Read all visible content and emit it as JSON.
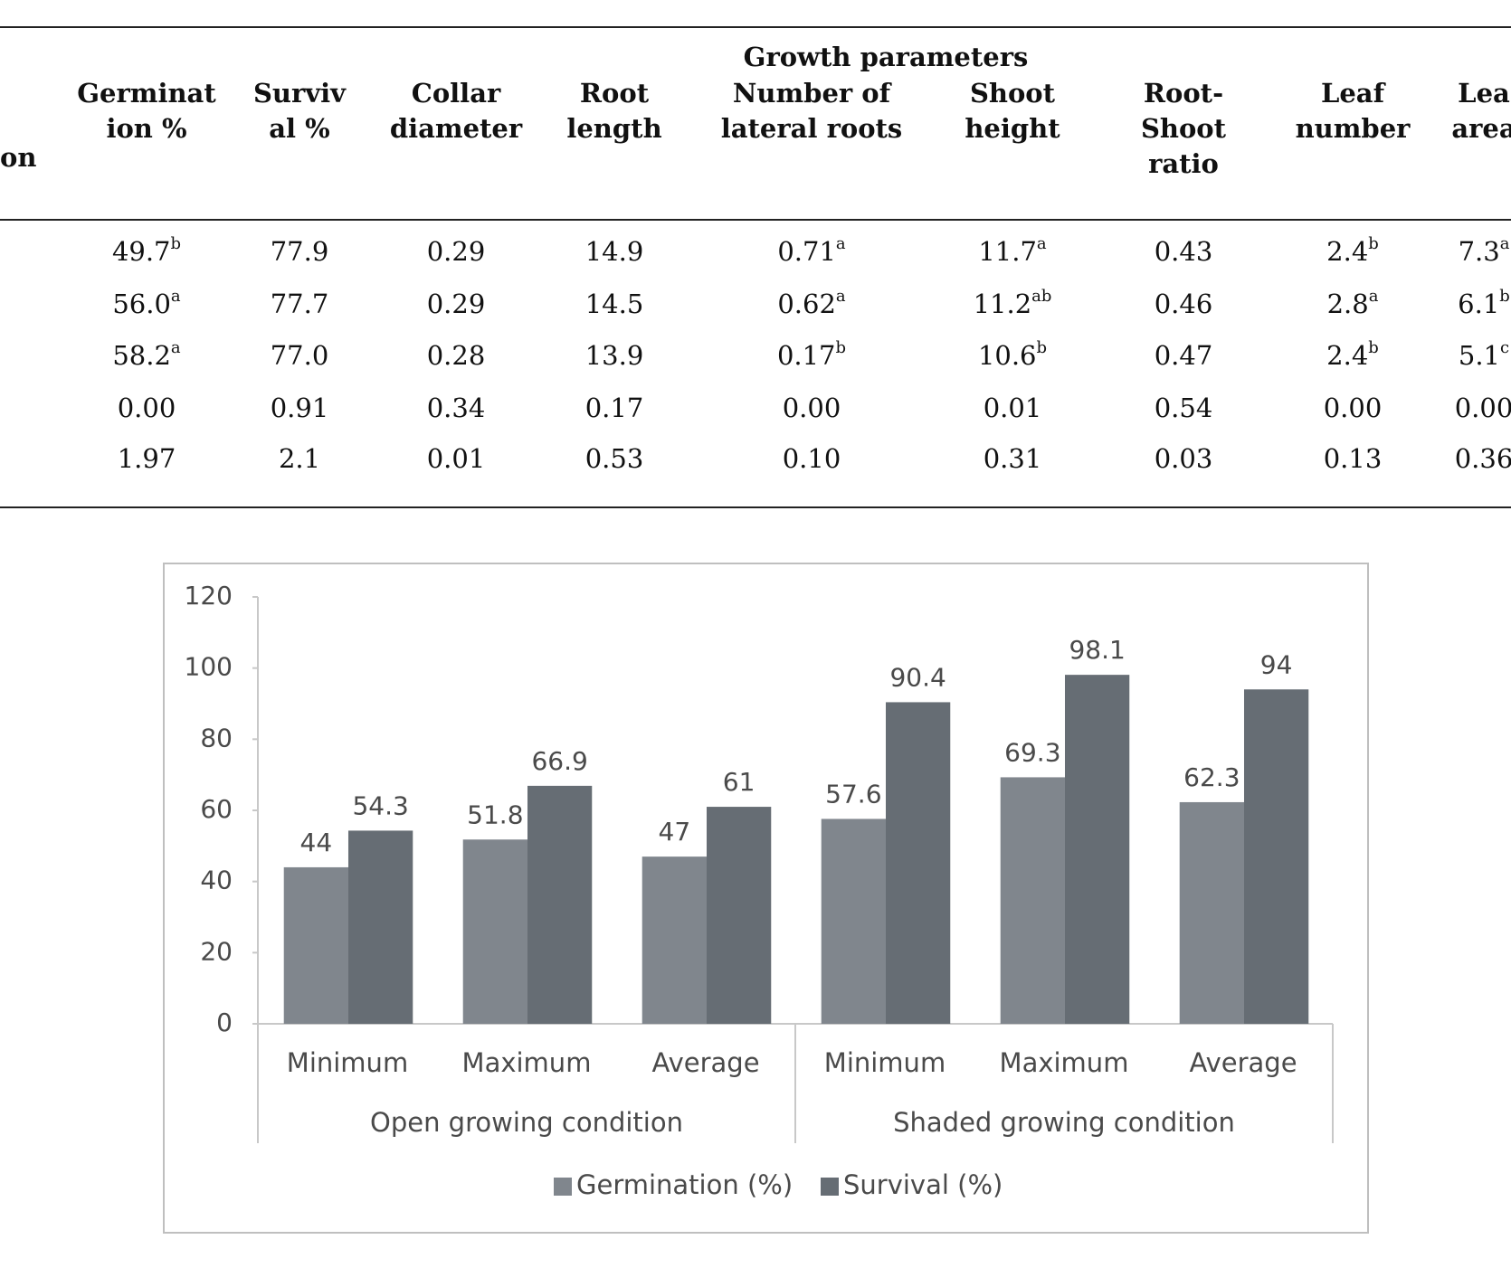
{
  "table": {
    "stub_header": "on",
    "group_header": "Growth parameters",
    "columns": [
      [
        "Germinat",
        "ion %"
      ],
      [
        "Surviv",
        "al %"
      ],
      [
        "Collar",
        "diameter"
      ],
      [
        "Root",
        "length"
      ],
      [
        "Number of",
        "lateral roots"
      ],
      [
        "Shoot",
        "height"
      ],
      [
        "Root-",
        "Shoot",
        "ratio"
      ],
      [
        "Leaf",
        "number"
      ],
      [
        "Lea",
        "area"
      ]
    ],
    "rows": [
      [
        {
          "text": "49.7",
          "sup": "b"
        },
        {
          "text": "77.9"
        },
        {
          "text": "0.29"
        },
        {
          "text": "14.9"
        },
        {
          "text": "0.71",
          "sup": "a"
        },
        {
          "text": "11.7",
          "sup": "a"
        },
        {
          "text": "0.43"
        },
        {
          "text": "2.4",
          "sup": "b"
        },
        {
          "text": "7.3",
          "sup": "a"
        }
      ],
      [
        {
          "text": "56.0",
          "sup": "a"
        },
        {
          "text": "77.7"
        },
        {
          "text": "0.29"
        },
        {
          "text": "14.5"
        },
        {
          "text": "0.62",
          "sup": "a"
        },
        {
          "text": "11.2",
          "sup": "ab"
        },
        {
          "text": "0.46"
        },
        {
          "text": "2.8",
          "sup": "a"
        },
        {
          "text": "6.1",
          "sup": "b"
        }
      ],
      [
        {
          "text": "58.2",
          "sup": "a"
        },
        {
          "text": "77.0"
        },
        {
          "text": "0.28"
        },
        {
          "text": "13.9"
        },
        {
          "text": "0.17",
          "sup": "b"
        },
        {
          "text": "10.6",
          "sup": "b"
        },
        {
          "text": "0.47"
        },
        {
          "text": "2.4",
          "sup": "b"
        },
        {
          "text": "5.1",
          "sup": "c"
        }
      ],
      [
        {
          "text": "0.00"
        },
        {
          "text": "0.91"
        },
        {
          "text": "0.34"
        },
        {
          "text": "0.17"
        },
        {
          "text": "0.00"
        },
        {
          "text": "0.01"
        },
        {
          "text": "0.54"
        },
        {
          "text": "0.00"
        },
        {
          "text": "0.00"
        }
      ],
      [
        {
          "text": "1.97"
        },
        {
          "text": "2.1"
        },
        {
          "text": "0.01"
        },
        {
          "text": "0.53"
        },
        {
          "text": "0.10"
        },
        {
          "text": "0.31"
        },
        {
          "text": "0.03"
        },
        {
          "text": "0.13"
        },
        {
          "text": "0.36"
        }
      ]
    ]
  },
  "chart_data": {
    "type": "bar",
    "categories": [
      "Minimum",
      "Maximum",
      "Average",
      "Minimum",
      "Maximum",
      "Average"
    ],
    "category_groups": [
      "Open growing condition",
      "Shaded growing condition"
    ],
    "series": [
      {
        "name": "Germination (%)",
        "color": "#80868d",
        "values": [
          44,
          51.8,
          47,
          57.6,
          69.3,
          62.3
        ]
      },
      {
        "name": "Survival (%)",
        "color": "#666d74",
        "values": [
          54.3,
          66.9,
          61,
          90.4,
          98.1,
          94
        ]
      }
    ],
    "ylim": [
      0,
      120
    ],
    "yticks": [
      0,
      20,
      40,
      60,
      80,
      100,
      120
    ],
    "grid": false,
    "legend": "bottom"
  }
}
